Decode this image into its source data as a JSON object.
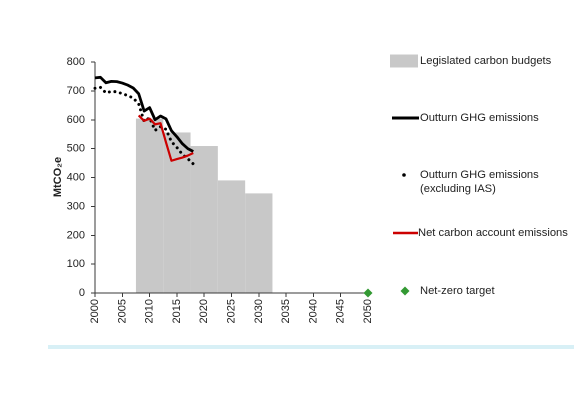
{
  "chart_data": {
    "type": "line",
    "title": "",
    "xlabel": "",
    "ylabel": "MtCO₂e",
    "xlim": [
      2000,
      2050
    ],
    "ylim": [
      0,
      800
    ],
    "xticks": [
      2000,
      2005,
      2010,
      2015,
      2020,
      2025,
      2030,
      2035,
      2040,
      2045,
      2050
    ],
    "yticks": [
      0,
      100,
      200,
      300,
      400,
      500,
      600,
      700,
      800
    ],
    "grid": false,
    "legend_position": "right",
    "series": [
      {
        "name": "Legislated carbon budgets",
        "type": "bar",
        "color": "#c8c8c8",
        "periods": [
          {
            "start": 2008,
            "end": 2012,
            "value": 604
          },
          {
            "start": 2013,
            "end": 2017,
            "value": 556
          },
          {
            "start": 2018,
            "end": 2022,
            "value": 509
          },
          {
            "start": 2023,
            "end": 2027,
            "value": 390
          },
          {
            "start": 2028,
            "end": 2032,
            "value": 345
          }
        ]
      },
      {
        "name": "Outturn GHG emissions",
        "type": "line",
        "line_style": "solid",
        "color": "#000000",
        "x": [
          2000,
          2001,
          2002,
          2003,
          2004,
          2005,
          2006,
          2007,
          2008,
          2009,
          2010,
          2011,
          2012,
          2013,
          2014,
          2015,
          2016,
          2017,
          2018
        ],
        "y": [
          745,
          747,
          728,
          733,
          732,
          727,
          720,
          710,
          690,
          630,
          642,
          600,
          613,
          603,
          562,
          541,
          517,
          500,
          490
        ]
      },
      {
        "name": "Outturn GHG emissions (excluding IAS)",
        "type": "line",
        "line_style": "dotted",
        "color": "#000000",
        "x": [
          2000,
          2001,
          2002,
          2003,
          2004,
          2005,
          2006,
          2007,
          2008,
          2009,
          2010,
          2011,
          2012,
          2013,
          2014,
          2015,
          2016,
          2017,
          2018
        ],
        "y": [
          709,
          712,
          693,
          698,
          697,
          690,
          684,
          675,
          655,
          594,
          607,
          563,
          576,
          567,
          524,
          504,
          480,
          465,
          447
        ]
      },
      {
        "name": "Net carbon account emissions",
        "type": "line",
        "line_style": "solid",
        "color": "#cc0000",
        "x": [
          2008,
          2009,
          2010,
          2011,
          2012,
          2013,
          2014,
          2015,
          2016,
          2017,
          2018
        ],
        "y": [
          615,
          596,
          604,
          584,
          588,
          522,
          458,
          464,
          469,
          476,
          485
        ]
      },
      {
        "name": "Net-zero target",
        "type": "scatter",
        "marker": "diamond",
        "color": "#339933",
        "x": [
          2050
        ],
        "y": [
          0
        ]
      }
    ]
  }
}
